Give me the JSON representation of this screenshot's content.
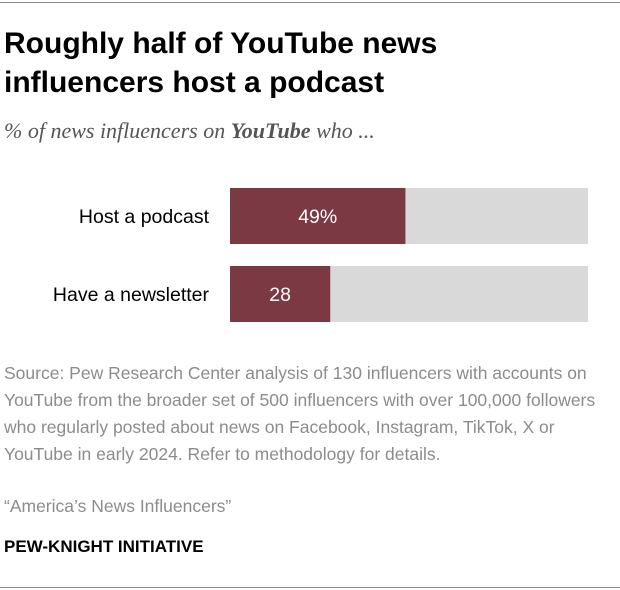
{
  "header": {
    "title_line1": "Roughly half of YouTube news",
    "title_line2": "influencers host a podcast",
    "subtitle_before": "% of news influencers on ",
    "subtitle_bold": "YouTube",
    "subtitle_after": " who ..."
  },
  "chart_data": {
    "type": "bar",
    "orientation": "horizontal",
    "categories": [
      "Host a podcast",
      "Have a newsletter"
    ],
    "values": [
      49,
      28
    ],
    "value_labels": [
      "49%",
      "28"
    ],
    "xlim": [
      0,
      100
    ],
    "grid": false,
    "colors": {
      "bar": "#7b3a43",
      "track": "#d9d9d9",
      "label_text": "#ffffff"
    }
  },
  "footer": {
    "source": "Source: Pew Research Center analysis of 130 influencers with accounts on YouTube from the broader set of 500 influencers with over 100,000 followers who regularly posted about news on Facebook, Instagram, TikTok, X or YouTube in early 2024. Refer to methodology for details.",
    "report": "“America’s News Influencers”",
    "brand": "PEW-KNIGHT INITIATIVE"
  }
}
